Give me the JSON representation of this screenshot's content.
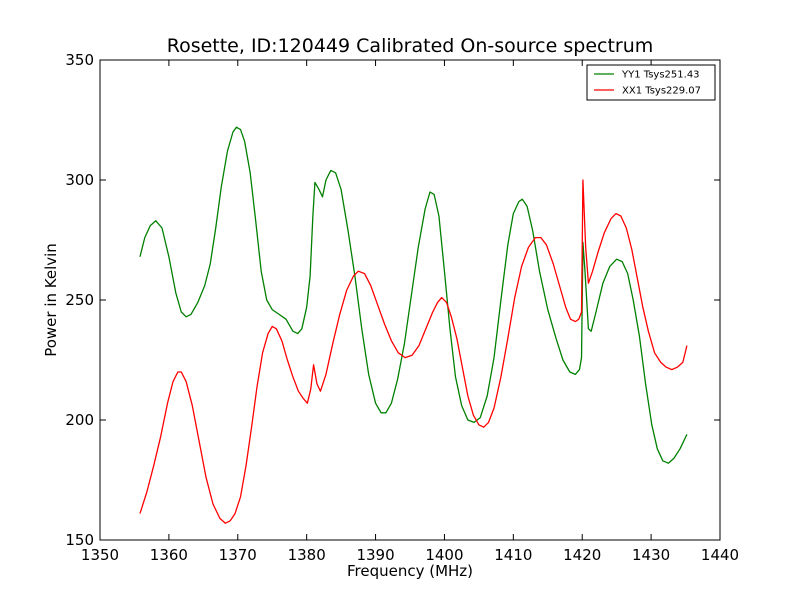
{
  "chart_data": {
    "type": "line",
    "title": "Rosette, ID:120449 Calibrated On-source spectrum",
    "xlabel": "Frequency (MHz)",
    "ylabel": "Power in Kelvin",
    "xlim": [
      1350,
      1440
    ],
    "ylim": [
      150,
      350
    ],
    "xticks": [
      1350,
      1360,
      1370,
      1380,
      1390,
      1400,
      1410,
      1420,
      1430,
      1440
    ],
    "yticks": [
      150,
      200,
      250,
      300,
      350
    ],
    "grid": false,
    "legend_position": "top-right",
    "series": [
      {
        "name": "YY1 Tsys251.43",
        "color": "#008000",
        "points": [
          [
            1355.8,
            268
          ],
          [
            1356.5,
            276
          ],
          [
            1357.3,
            281
          ],
          [
            1358.1,
            283
          ],
          [
            1359.0,
            280
          ],
          [
            1360.0,
            268
          ],
          [
            1361.0,
            253
          ],
          [
            1361.8,
            245
          ],
          [
            1362.5,
            243
          ],
          [
            1363.2,
            244
          ],
          [
            1364.2,
            249
          ],
          [
            1365.2,
            256
          ],
          [
            1366.0,
            265
          ],
          [
            1366.8,
            280
          ],
          [
            1367.6,
            297
          ],
          [
            1368.5,
            312
          ],
          [
            1369.3,
            320
          ],
          [
            1369.8,
            322
          ],
          [
            1370.4,
            321
          ],
          [
            1371.0,
            316
          ],
          [
            1371.8,
            303
          ],
          [
            1372.6,
            283
          ],
          [
            1373.4,
            262
          ],
          [
            1374.2,
            250
          ],
          [
            1375.0,
            246
          ],
          [
            1376.0,
            244
          ],
          [
            1377.0,
            242
          ],
          [
            1378.0,
            237
          ],
          [
            1378.7,
            236
          ],
          [
            1379.3,
            238
          ],
          [
            1380.0,
            247
          ],
          [
            1380.5,
            260
          ],
          [
            1380.9,
            285
          ],
          [
            1381.2,
            299
          ],
          [
            1381.8,
            296
          ],
          [
            1382.3,
            293
          ],
          [
            1382.8,
            300
          ],
          [
            1383.5,
            304
          ],
          [
            1384.2,
            303
          ],
          [
            1385.0,
            296
          ],
          [
            1386.0,
            279
          ],
          [
            1387.0,
            260
          ],
          [
            1388.0,
            238
          ],
          [
            1389.0,
            219
          ],
          [
            1390.0,
            207
          ],
          [
            1390.8,
            203
          ],
          [
            1391.5,
            203
          ],
          [
            1392.3,
            207
          ],
          [
            1393.2,
            217
          ],
          [
            1394.2,
            232
          ],
          [
            1395.2,
            252
          ],
          [
            1396.2,
            272
          ],
          [
            1397.2,
            288
          ],
          [
            1397.9,
            295
          ],
          [
            1398.5,
            294
          ],
          [
            1399.2,
            285
          ],
          [
            1400.0,
            262
          ],
          [
            1400.8,
            238
          ],
          [
            1401.6,
            218
          ],
          [
            1402.5,
            206
          ],
          [
            1403.4,
            200
          ],
          [
            1404.3,
            199
          ],
          [
            1405.2,
            201
          ],
          [
            1406.2,
            210
          ],
          [
            1407.2,
            226
          ],
          [
            1408.2,
            250
          ],
          [
            1409.2,
            273
          ],
          [
            1410.0,
            286
          ],
          [
            1410.8,
            291
          ],
          [
            1411.3,
            292
          ],
          [
            1412.0,
            289
          ],
          [
            1412.8,
            279
          ],
          [
            1413.8,
            262
          ],
          [
            1415.0,
            246
          ],
          [
            1416.2,
            234
          ],
          [
            1417.2,
            225
          ],
          [
            1418.2,
            220
          ],
          [
            1419.0,
            219
          ],
          [
            1419.6,
            221
          ],
          [
            1419.9,
            226
          ],
          [
            1420.1,
            274
          ],
          [
            1420.4,
            262
          ],
          [
            1420.9,
            238
          ],
          [
            1421.3,
            237
          ],
          [
            1422.0,
            245
          ],
          [
            1423.0,
            257
          ],
          [
            1424.0,
            264
          ],
          [
            1425.0,
            267
          ],
          [
            1425.8,
            266
          ],
          [
            1426.6,
            261
          ],
          [
            1427.4,
            250
          ],
          [
            1428.3,
            235
          ],
          [
            1429.2,
            215
          ],
          [
            1430.1,
            198
          ],
          [
            1430.9,
            188
          ],
          [
            1431.7,
            183
          ],
          [
            1432.5,
            182
          ],
          [
            1433.3,
            184
          ],
          [
            1434.2,
            188
          ],
          [
            1435.2,
            194
          ]
        ]
      },
      {
        "name": "XX1 Tsys229.07",
        "color": "#ff0000",
        "points": [
          [
            1355.8,
            161
          ],
          [
            1356.8,
            170
          ],
          [
            1357.8,
            181
          ],
          [
            1358.8,
            193
          ],
          [
            1359.8,
            207
          ],
          [
            1360.6,
            216
          ],
          [
            1361.3,
            220
          ],
          [
            1361.8,
            220
          ],
          [
            1362.5,
            216
          ],
          [
            1363.4,
            206
          ],
          [
            1364.4,
            191
          ],
          [
            1365.4,
            176
          ],
          [
            1366.4,
            165
          ],
          [
            1367.4,
            159
          ],
          [
            1368.2,
            157
          ],
          [
            1368.9,
            158
          ],
          [
            1369.6,
            161
          ],
          [
            1370.4,
            168
          ],
          [
            1371.2,
            181
          ],
          [
            1372.0,
            197
          ],
          [
            1372.8,
            214
          ],
          [
            1373.6,
            228
          ],
          [
            1374.4,
            236
          ],
          [
            1375.0,
            239
          ],
          [
            1375.6,
            238
          ],
          [
            1376.4,
            233
          ],
          [
            1377.2,
            225
          ],
          [
            1378.0,
            218
          ],
          [
            1378.8,
            212
          ],
          [
            1379.5,
            209
          ],
          [
            1380.1,
            207
          ],
          [
            1380.6,
            213
          ],
          [
            1381.0,
            223
          ],
          [
            1381.5,
            215
          ],
          [
            1382.0,
            212
          ],
          [
            1382.8,
            219
          ],
          [
            1383.8,
            232
          ],
          [
            1384.8,
            244
          ],
          [
            1385.8,
            254
          ],
          [
            1386.8,
            260
          ],
          [
            1387.5,
            262
          ],
          [
            1388.4,
            261
          ],
          [
            1389.3,
            256
          ],
          [
            1390.3,
            248
          ],
          [
            1391.3,
            240
          ],
          [
            1392.3,
            233
          ],
          [
            1393.3,
            228
          ],
          [
            1394.3,
            226
          ],
          [
            1395.3,
            227
          ],
          [
            1396.3,
            231
          ],
          [
            1397.3,
            238
          ],
          [
            1398.3,
            245
          ],
          [
            1399.0,
            249
          ],
          [
            1399.6,
            251
          ],
          [
            1400.3,
            249
          ],
          [
            1401.0,
            243
          ],
          [
            1401.8,
            234
          ],
          [
            1402.6,
            222
          ],
          [
            1403.4,
            210
          ],
          [
            1404.2,
            202
          ],
          [
            1405.0,
            198
          ],
          [
            1405.7,
            197
          ],
          [
            1406.4,
            199
          ],
          [
            1407.2,
            205
          ],
          [
            1408.2,
            218
          ],
          [
            1409.2,
            234
          ],
          [
            1410.2,
            251
          ],
          [
            1411.2,
            264
          ],
          [
            1412.2,
            272
          ],
          [
            1413.2,
            276
          ],
          [
            1414.0,
            276
          ],
          [
            1414.8,
            273
          ],
          [
            1415.8,
            265
          ],
          [
            1416.8,
            255
          ],
          [
            1417.6,
            247
          ],
          [
            1418.3,
            242
          ],
          [
            1419.0,
            241
          ],
          [
            1419.5,
            242
          ],
          [
            1419.9,
            245
          ],
          [
            1420.1,
            300
          ],
          [
            1420.5,
            272
          ],
          [
            1420.9,
            257
          ],
          [
            1421.5,
            262
          ],
          [
            1422.3,
            270
          ],
          [
            1423.2,
            278
          ],
          [
            1424.2,
            284
          ],
          [
            1424.9,
            286
          ],
          [
            1425.6,
            285
          ],
          [
            1426.4,
            280
          ],
          [
            1427.2,
            271
          ],
          [
            1428.0,
            259
          ],
          [
            1428.8,
            247
          ],
          [
            1429.6,
            237
          ],
          [
            1430.5,
            228
          ],
          [
            1431.4,
            224
          ],
          [
            1432.2,
            222
          ],
          [
            1433.0,
            221
          ],
          [
            1433.8,
            222
          ],
          [
            1434.6,
            224
          ],
          [
            1435.2,
            231
          ]
        ]
      }
    ]
  }
}
